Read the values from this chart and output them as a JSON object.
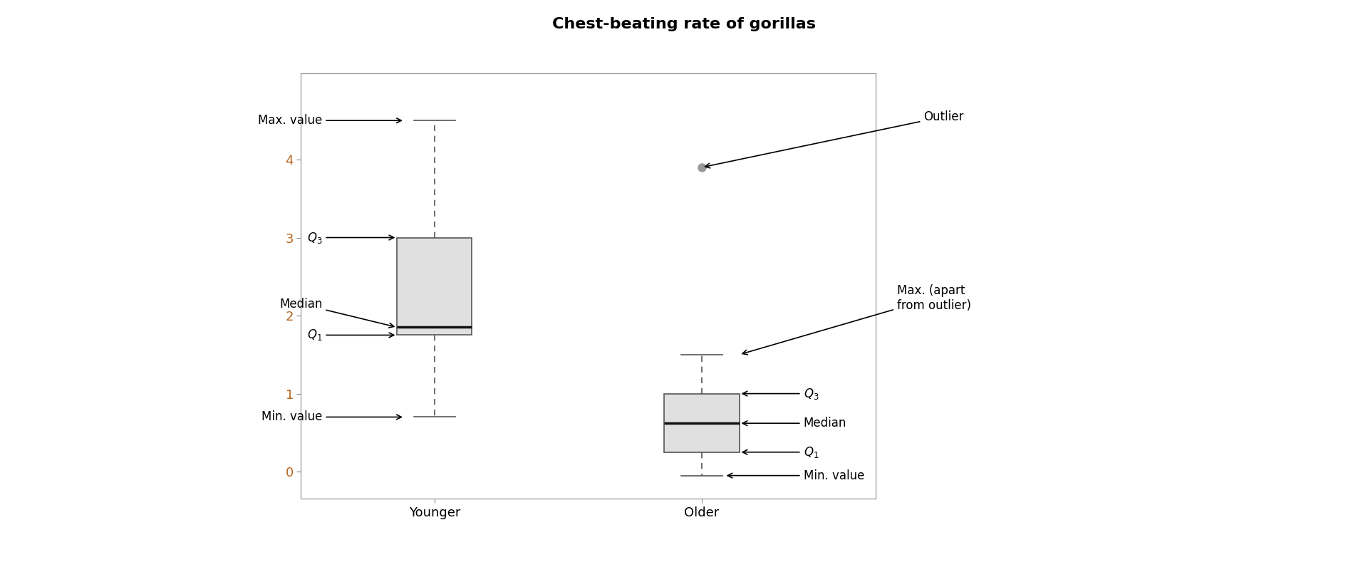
{
  "title": "Chest-beating rate of gorillas",
  "categories": [
    "Younger",
    "Older"
  ],
  "younger": {
    "q1": 1.75,
    "median": 1.85,
    "q3": 3.0,
    "whisker_low": 0.7,
    "whisker_high": 4.5,
    "outliers": []
  },
  "older": {
    "q1": 0.25,
    "median": 0.62,
    "q3": 1.0,
    "whisker_low": -0.05,
    "whisker_high": 1.5,
    "outliers": [
      3.9
    ]
  },
  "ylim": [
    -0.35,
    5.1
  ],
  "yticks": [
    0,
    1,
    2,
    3,
    4
  ],
  "tick_color": "#b5651d",
  "box_facecolor": "#e0e0e0",
  "box_edgecolor": "#555555",
  "median_color": "#111111",
  "cap_color": "#555555",
  "outlier_color": "#999999",
  "background_color": "#ffffff",
  "box_width": 0.28,
  "x_younger": 1,
  "x_older": 2,
  "xlim": [
    0.5,
    2.65
  ]
}
